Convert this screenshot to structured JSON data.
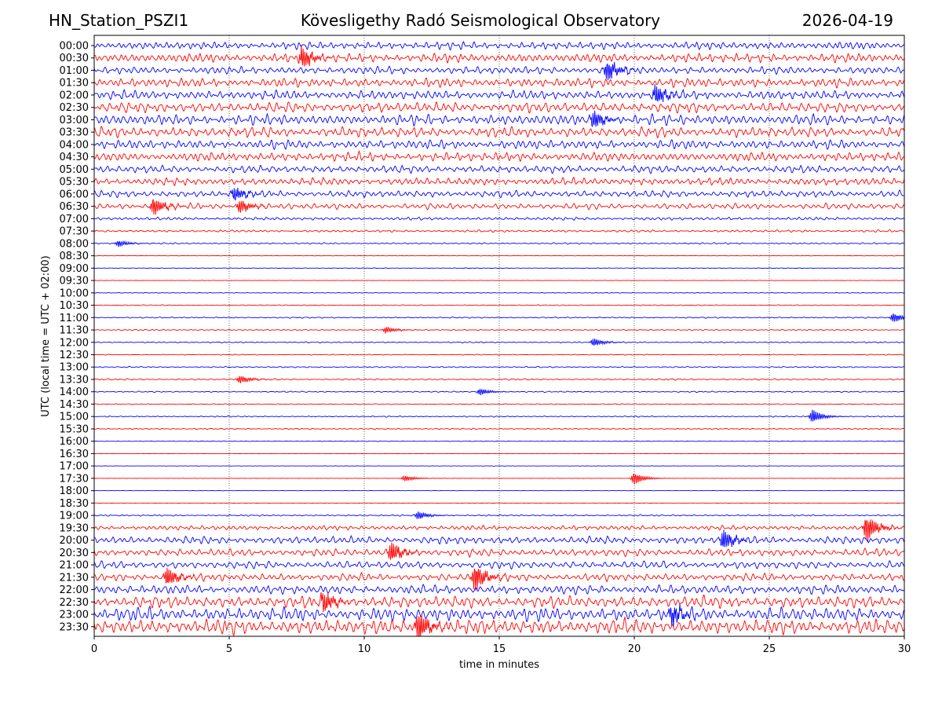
{
  "header": {
    "station": "HN_Station_PSZI1",
    "title": "Kövesligethy Radó Seismological Observatory",
    "date": "2026-04-19"
  },
  "chart_data": {
    "type": "line",
    "subtype": "helicorder (stacked seismogram traces)",
    "xlabel": "time in minutes",
    "ylabel": "UTC (local time = UTC + 02:00)",
    "xlim": [
      0,
      30
    ],
    "x_ticks": [
      "0",
      "5",
      "10",
      "15",
      "20",
      "25",
      "30"
    ],
    "vertical_gridlines_at": [
      5,
      10,
      15,
      20,
      25
    ],
    "grid": "dotted vertical lines only",
    "colors": {
      "even_rows": "#0000ff",
      "odd_rows": "#ff0000"
    },
    "row_labels": [
      "00:00",
      "00:30",
      "01:00",
      "01:30",
      "02:00",
      "02:30",
      "03:00",
      "03:30",
      "04:00",
      "04:30",
      "05:00",
      "05:30",
      "06:00",
      "06:30",
      "07:00",
      "07:30",
      "08:00",
      "08:30",
      "09:00",
      "09:30",
      "10:00",
      "10:30",
      "11:00",
      "11:30",
      "12:00",
      "12:30",
      "13:00",
      "13:30",
      "14:00",
      "14:30",
      "15:00",
      "15:30",
      "16:00",
      "16:30",
      "17:00",
      "17:30",
      "18:00",
      "18:30",
      "19:00",
      "19:30",
      "20:00",
      "20:30",
      "21:00",
      "21:30",
      "22:00",
      "22:30",
      "23:00",
      "23:30"
    ],
    "noise_amplitude_per_row": [
      0.5,
      0.6,
      0.5,
      0.6,
      0.6,
      0.7,
      0.7,
      0.7,
      0.6,
      0.6,
      0.5,
      0.5,
      0.45,
      0.4,
      0.2,
      0.15,
      0.1,
      0.03,
      0.04,
      0.03,
      0.04,
      0.06,
      0.08,
      0.08,
      0.08,
      0.06,
      0.08,
      0.1,
      0.08,
      0.06,
      0.08,
      0.08,
      0.04,
      0.02,
      0.02,
      0.02,
      0.02,
      0.02,
      0.1,
      0.3,
      0.5,
      0.5,
      0.5,
      0.5,
      0.6,
      0.8,
      0.9,
      1.0
    ],
    "events": [
      {
        "row": "00:30",
        "minute": 7.7,
        "amplitude": 1.6
      },
      {
        "row": "01:00",
        "minute": 19.0,
        "amplitude": 1.5
      },
      {
        "row": "02:00",
        "minute": 20.8,
        "amplitude": 1.4
      },
      {
        "row": "03:00",
        "minute": 18.5,
        "amplitude": 1.3
      },
      {
        "row": "06:00",
        "minute": 5.2,
        "amplitude": 1.0
      },
      {
        "row": "06:30",
        "minute": 2.2,
        "amplitude": 1.3
      },
      {
        "row": "06:30",
        "minute": 5.4,
        "amplitude": 1.0
      },
      {
        "row": "08:00",
        "minute": 0.9,
        "amplitude": 0.5
      },
      {
        "row": "11:00",
        "minute": 29.6,
        "amplitude": 0.7
      },
      {
        "row": "11:30",
        "minute": 10.8,
        "amplitude": 0.5
      },
      {
        "row": "12:00",
        "minute": 18.5,
        "amplitude": 0.6
      },
      {
        "row": "13:30",
        "minute": 5.4,
        "amplitude": 0.6
      },
      {
        "row": "14:00",
        "minute": 14.3,
        "amplitude": 0.5
      },
      {
        "row": "15:00",
        "minute": 26.6,
        "amplitude": 1.0
      },
      {
        "row": "17:30",
        "minute": 11.5,
        "amplitude": 0.45
      },
      {
        "row": "17:30",
        "minute": 20.0,
        "amplitude": 0.9
      },
      {
        "row": "19:00",
        "minute": 12.0,
        "amplitude": 0.6
      },
      {
        "row": "19:30",
        "minute": 28.6,
        "amplitude": 2.0
      },
      {
        "row": "20:00",
        "minute": 23.3,
        "amplitude": 1.5
      },
      {
        "row": "20:30",
        "minute": 11.0,
        "amplitude": 1.5
      },
      {
        "row": "21:30",
        "minute": 2.7,
        "amplitude": 1.4
      },
      {
        "row": "21:30",
        "minute": 14.1,
        "amplitude": 2.0
      },
      {
        "row": "22:30",
        "minute": 8.5,
        "amplitude": 1.5
      },
      {
        "row": "23:00",
        "minute": 21.4,
        "amplitude": 1.5
      },
      {
        "row": "23:30",
        "minute": 12.0,
        "amplitude": 2.2
      }
    ]
  }
}
